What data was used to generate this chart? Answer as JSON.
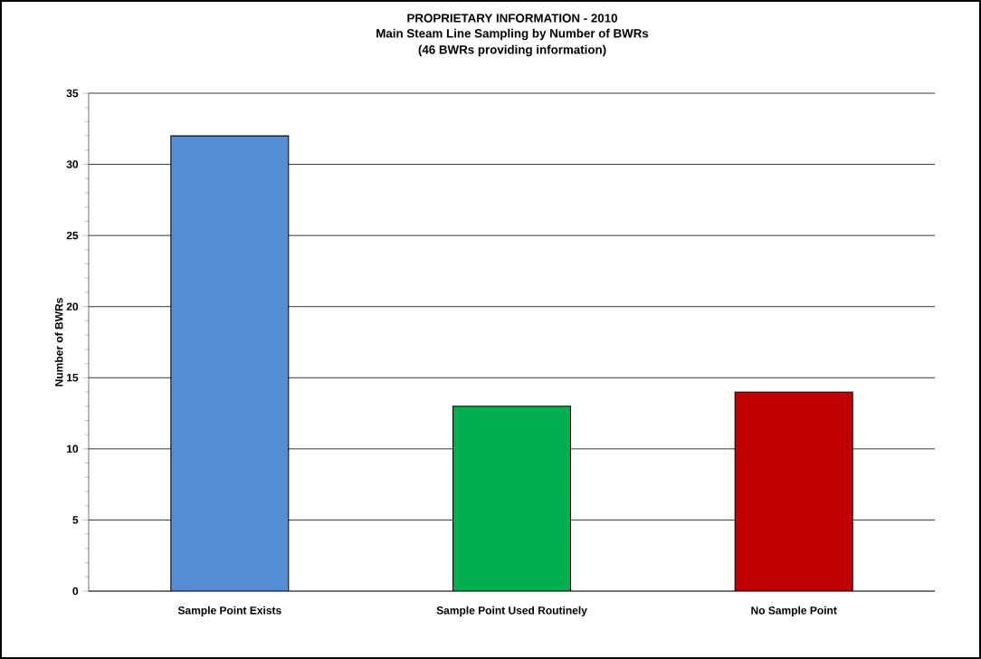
{
  "chart_data": {
    "type": "bar",
    "title": "PROPRIETARY INFORMATION - 2010",
    "subtitle": "Main Steam Line Sampling by Number of BWRs",
    "annotations": [
      "(46 BWRs providing information)"
    ],
    "ylabel": "Number of BWRs",
    "categories": [
      "Sample Point Exists",
      "Sample Point Used Routinely",
      "No Sample Point"
    ],
    "values": [
      32,
      13,
      14
    ],
    "colors": [
      "#558ed5",
      "#00b050",
      "#c00000"
    ],
    "ylim": [
      0,
      35
    ],
    "yticks": [
      0,
      5,
      10,
      15,
      20,
      25,
      30,
      35
    ],
    "grid": "y"
  }
}
